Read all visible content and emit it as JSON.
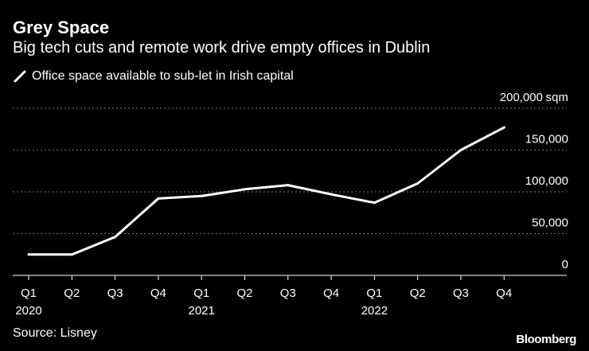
{
  "header": {
    "title": "Grey Space",
    "subtitle": "Big tech cuts and remote work drive empty offices in Dublin"
  },
  "chart_data": {
    "type": "line",
    "title": "Grey Space",
    "subtitle": "Big tech cuts and remote work drive empty offices in Dublin",
    "categories": [
      "Q1",
      "Q2",
      "Q3",
      "Q4",
      "Q1",
      "Q2",
      "Q3",
      "Q4",
      "Q1",
      "Q2",
      "Q3",
      "Q4"
    ],
    "year_labels": [
      {
        "index": 0,
        "label": "2020"
      },
      {
        "index": 4,
        "label": "2021"
      },
      {
        "index": 8,
        "label": "2022"
      }
    ],
    "series": [
      {
        "name": "Office space available to sub-let in Irish capital",
        "color": "#ffffff",
        "values": [
          25000,
          25000,
          46000,
          92000,
          95000,
          103000,
          108000,
          97000,
          87000,
          110000,
          150000,
          177000
        ]
      }
    ],
    "ylim": [
      0,
      200000
    ],
    "yticks": [
      0,
      50000,
      100000,
      150000,
      200000
    ],
    "ytick_labels": [
      "0",
      "50,000",
      "100,000",
      "150,000",
      "200,000"
    ],
    "y_unit": "sqm",
    "xlabel": "",
    "ylabel": "",
    "grid": true,
    "legend_position": "top-left",
    "source": "Source: Lisney",
    "brand": "Bloomberg",
    "colors": {
      "background": "#000000",
      "text": "#ffffff",
      "grid": "#7a7a7a",
      "axis": "#ffffff"
    }
  }
}
